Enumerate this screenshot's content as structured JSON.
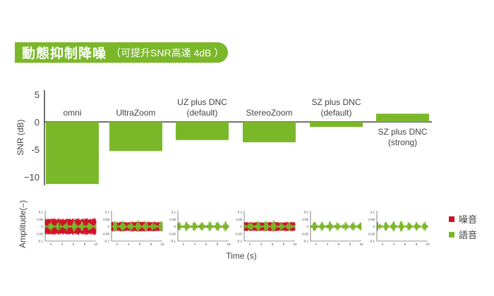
{
  "header": {
    "title": "動態抑制降噪",
    "subtitle": "（可提升SNR高達 4dB ）"
  },
  "colors": {
    "speech": "#7ab829",
    "noise": "#d0122a",
    "axis": "#444444"
  },
  "chart_data": [
    {
      "type": "bar",
      "ylabel": "SNR (dB)",
      "ylim": [
        -11.5,
        5
      ],
      "yticks": [
        5,
        0,
        -5,
        -10
      ],
      "ytick_labels": [
        "5",
        "0",
        "-5",
        "−10"
      ],
      "categories": [
        [
          "omni"
        ],
        [
          "UltraZoom"
        ],
        [
          "UZ plus DNC",
          "(default)"
        ],
        [
          "StereoZoom"
        ],
        [
          "SZ plus DNC",
          "(default)"
        ],
        [
          "SZ plus DNC",
          "(strong)"
        ]
      ],
      "values": [
        -11.3,
        -5.3,
        -3.3,
        -3.7,
        -0.9,
        1.5
      ],
      "color": "#7ab829",
      "grid": false
    },
    {
      "type": "line",
      "xlabel": "Time (s)",
      "ylabel": "Amplitude(–)",
      "xlim": [
        1,
        10
      ],
      "ylim": [
        -0.1,
        0.1
      ],
      "xticks": [
        "2",
        "4",
        "6",
        "8",
        "10"
      ],
      "yticks": [
        "0.1",
        "0.05",
        "0",
        "-0.05",
        "-0.1"
      ],
      "legend": {
        "position": "right",
        "entries": [
          {
            "name": "噪音",
            "color": "#d0122a"
          },
          {
            "name": "語音",
            "color": "#7ab829"
          }
        ]
      },
      "panels": [
        {
          "category": "omni",
          "noise_amplitude": 0.05,
          "speech_amplitude": 0.04
        },
        {
          "category": "UltraZoom",
          "noise_amplitude": 0.03,
          "speech_amplitude": 0.045
        },
        {
          "category": "UZ plus DNC (default)",
          "noise_amplitude": 0.006,
          "speech_amplitude": 0.04
        },
        {
          "category": "StereoZoom",
          "noise_amplitude": 0.028,
          "speech_amplitude": 0.045
        },
        {
          "category": "SZ plus DNC (default)",
          "noise_amplitude": 0.005,
          "speech_amplitude": 0.04
        },
        {
          "category": "SZ plus DNC (strong)",
          "noise_amplitude": 0.003,
          "speech_amplitude": 0.04
        }
      ]
    }
  ]
}
